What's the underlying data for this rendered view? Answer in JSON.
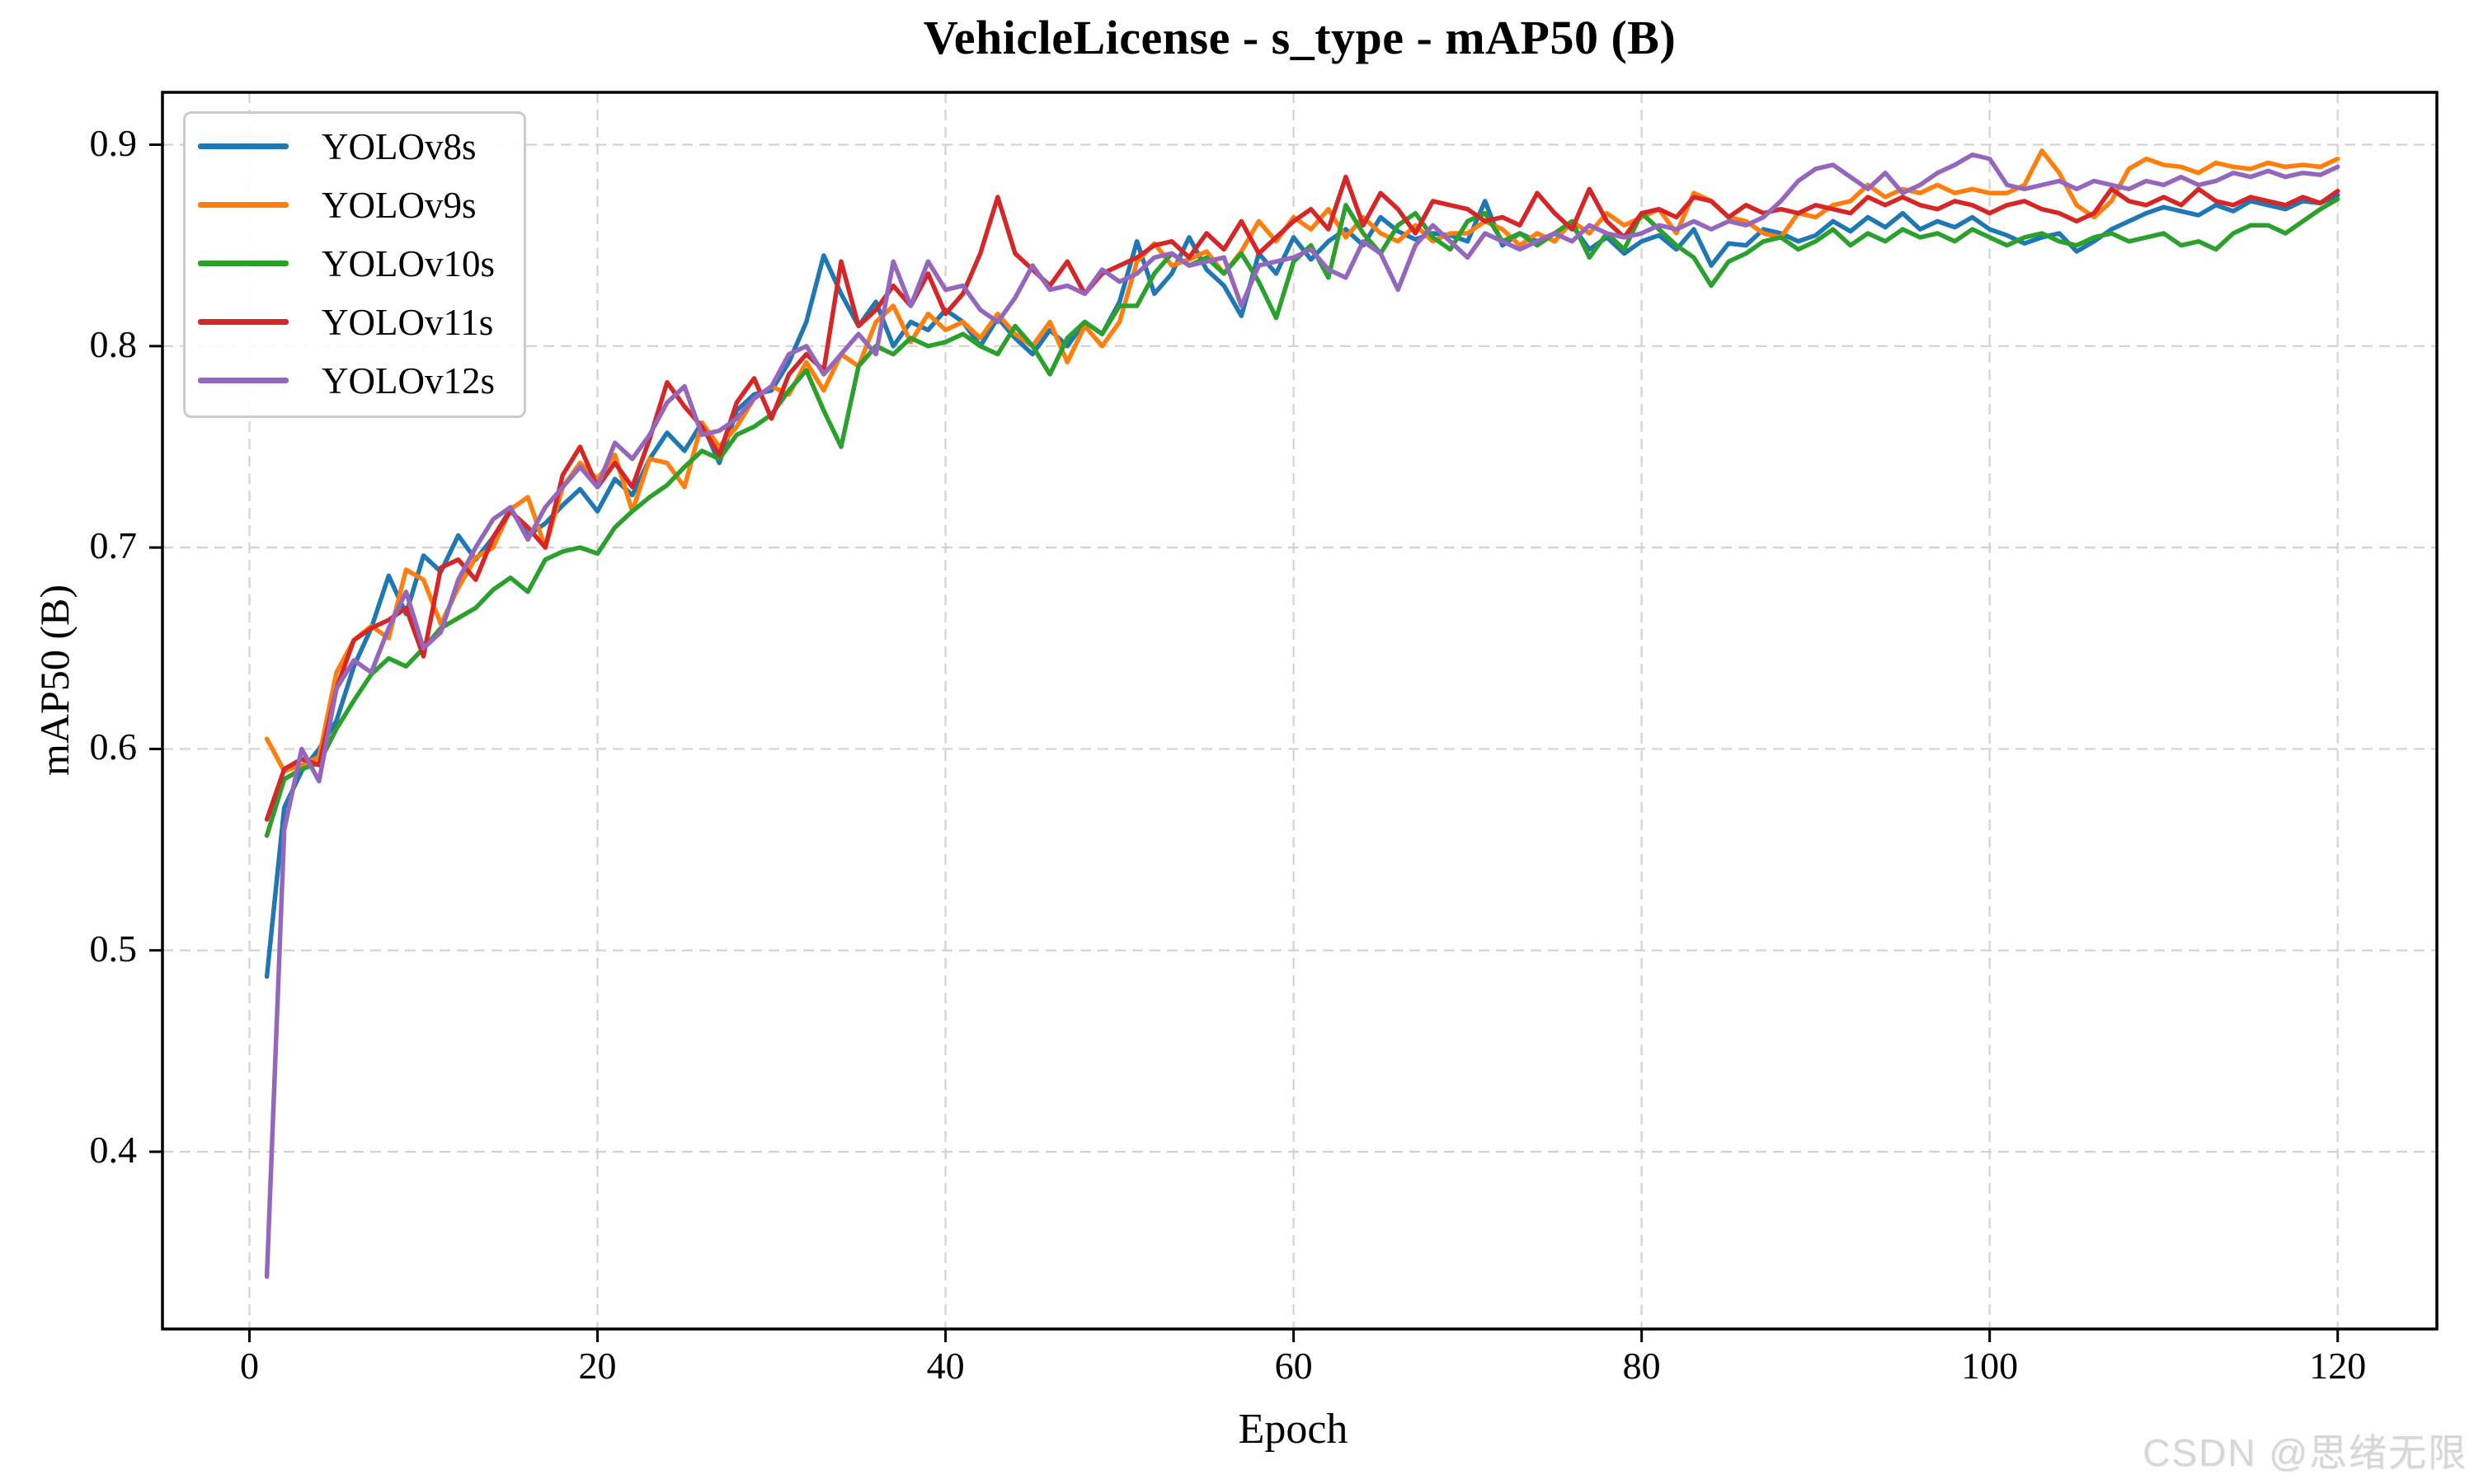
{
  "figure": {
    "watermark": "CSDN @思绪无限"
  },
  "chart_data": {
    "type": "line",
    "title": "VehicleLicense - s_type - mAP50 (B)",
    "xlabel": "Epoch",
    "ylabel": "mAP50 (B)",
    "xlim": [
      -5,
      125.7
    ],
    "ylim": [
      0.312,
      0.926
    ],
    "xticks": [
      0,
      20,
      40,
      60,
      80,
      100,
      120
    ],
    "yticks": [
      0.4,
      0.5,
      0.6,
      0.7,
      0.8,
      0.9
    ],
    "grid": true,
    "grid_style": "dashed",
    "grid_color": "#d2d2d2",
    "legend_position": "upper left",
    "x_start": 1,
    "series": [
      {
        "name": "YOLOv8s",
        "color": "#1f77b4",
        "values": [
          0.487,
          0.571,
          0.589,
          0.6,
          0.614,
          0.641,
          0.66,
          0.686,
          0.667,
          0.696,
          0.688,
          0.706,
          0.694,
          0.705,
          0.719,
          0.706,
          0.712,
          0.721,
          0.729,
          0.718,
          0.734,
          0.726,
          0.744,
          0.757,
          0.748,
          0.762,
          0.742,
          0.768,
          0.776,
          0.778,
          0.792,
          0.812,
          0.845,
          0.826,
          0.81,
          0.822,
          0.8,
          0.812,
          0.808,
          0.818,
          0.812,
          0.8,
          0.814,
          0.804,
          0.796,
          0.808,
          0.8,
          0.812,
          0.806,
          0.822,
          0.852,
          0.826,
          0.836,
          0.854,
          0.838,
          0.83,
          0.815,
          0.846,
          0.836,
          0.854,
          0.843,
          0.852,
          0.858,
          0.85,
          0.864,
          0.857,
          0.853,
          0.856,
          0.855,
          0.852,
          0.872,
          0.85,
          0.856,
          0.852,
          0.856,
          0.86,
          0.848,
          0.854,
          0.846,
          0.852,
          0.855,
          0.848,
          0.858,
          0.84,
          0.851,
          0.85,
          0.858,
          0.856,
          0.852,
          0.855,
          0.862,
          0.857,
          0.864,
          0.859,
          0.866,
          0.858,
          0.862,
          0.859,
          0.864,
          0.858,
          0.855,
          0.851,
          0.854,
          0.856,
          0.847,
          0.852,
          0.858,
          0.862,
          0.866,
          0.869,
          0.867,
          0.865,
          0.87,
          0.867,
          0.872,
          0.87,
          0.868,
          0.872,
          0.871,
          0.875
        ]
      },
      {
        "name": "YOLOv9s",
        "color": "#ff7f0e",
        "values": [
          0.605,
          0.589,
          0.592,
          0.596,
          0.638,
          0.654,
          0.661,
          0.655,
          0.689,
          0.684,
          0.662,
          0.68,
          0.695,
          0.7,
          0.719,
          0.725,
          0.7,
          0.73,
          0.742,
          0.734,
          0.746,
          0.718,
          0.744,
          0.742,
          0.73,
          0.762,
          0.75,
          0.76,
          0.774,
          0.78,
          0.776,
          0.792,
          0.778,
          0.796,
          0.79,
          0.812,
          0.82,
          0.802,
          0.816,
          0.808,
          0.812,
          0.804,
          0.816,
          0.806,
          0.8,
          0.812,
          0.792,
          0.81,
          0.8,
          0.812,
          0.842,
          0.851,
          0.84,
          0.843,
          0.847,
          0.836,
          0.847,
          0.862,
          0.852,
          0.864,
          0.858,
          0.868,
          0.854,
          0.864,
          0.856,
          0.852,
          0.86,
          0.852,
          0.856,
          0.856,
          0.862,
          0.858,
          0.85,
          0.856,
          0.852,
          0.862,
          0.856,
          0.866,
          0.86,
          0.864,
          0.868,
          0.856,
          0.876,
          0.872,
          0.864,
          0.862,
          0.856,
          0.854,
          0.866,
          0.864,
          0.87,
          0.872,
          0.88,
          0.874,
          0.878,
          0.876,
          0.88,
          0.876,
          0.878,
          0.876,
          0.876,
          0.88,
          0.897,
          0.886,
          0.87,
          0.864,
          0.872,
          0.888,
          0.893,
          0.89,
          0.889,
          0.886,
          0.891,
          0.889,
          0.888,
          0.891,
          0.889,
          0.89,
          0.889,
          0.893
        ]
      },
      {
        "name": "YOLOv10s",
        "color": "#2ca02c",
        "values": [
          0.557,
          0.585,
          0.59,
          0.593,
          0.61,
          0.624,
          0.637,
          0.645,
          0.641,
          0.65,
          0.66,
          0.665,
          0.67,
          0.679,
          0.685,
          0.678,
          0.694,
          0.698,
          0.7,
          0.697,
          0.71,
          0.718,
          0.725,
          0.731,
          0.74,
          0.748,
          0.744,
          0.756,
          0.76,
          0.766,
          0.778,
          0.788,
          0.768,
          0.75,
          0.79,
          0.8,
          0.796,
          0.804,
          0.8,
          0.802,
          0.806,
          0.8,
          0.796,
          0.81,
          0.8,
          0.786,
          0.804,
          0.812,
          0.806,
          0.82,
          0.82,
          0.836,
          0.846,
          0.84,
          0.844,
          0.836,
          0.846,
          0.832,
          0.814,
          0.842,
          0.85,
          0.834,
          0.87,
          0.856,
          0.846,
          0.86,
          0.866,
          0.854,
          0.848,
          0.862,
          0.866,
          0.852,
          0.856,
          0.85,
          0.856,
          0.862,
          0.844,
          0.856,
          0.848,
          0.866,
          0.858,
          0.85,
          0.844,
          0.83,
          0.842,
          0.846,
          0.852,
          0.854,
          0.848,
          0.852,
          0.858,
          0.85,
          0.856,
          0.852,
          0.858,
          0.854,
          0.856,
          0.852,
          0.858,
          0.854,
          0.85,
          0.854,
          0.856,
          0.852,
          0.85,
          0.854,
          0.856,
          0.852,
          0.854,
          0.856,
          0.85,
          0.852,
          0.848,
          0.856,
          0.86,
          0.86,
          0.856,
          0.862,
          0.868,
          0.873
        ]
      },
      {
        "name": "YOLOv11s",
        "color": "#d62728",
        "values": [
          0.565,
          0.59,
          0.595,
          0.592,
          0.63,
          0.654,
          0.66,
          0.664,
          0.67,
          0.646,
          0.69,
          0.694,
          0.684,
          0.705,
          0.718,
          0.71,
          0.7,
          0.736,
          0.75,
          0.73,
          0.742,
          0.73,
          0.754,
          0.782,
          0.77,
          0.76,
          0.746,
          0.772,
          0.784,
          0.764,
          0.786,
          0.796,
          0.788,
          0.842,
          0.81,
          0.818,
          0.83,
          0.82,
          0.836,
          0.816,
          0.826,
          0.846,
          0.874,
          0.846,
          0.838,
          0.83,
          0.842,
          0.826,
          0.836,
          0.84,
          0.844,
          0.85,
          0.852,
          0.844,
          0.856,
          0.848,
          0.862,
          0.846,
          0.854,
          0.862,
          0.868,
          0.858,
          0.884,
          0.86,
          0.876,
          0.868,
          0.856,
          0.872,
          0.87,
          0.868,
          0.862,
          0.864,
          0.86,
          0.876,
          0.866,
          0.858,
          0.878,
          0.862,
          0.854,
          0.866,
          0.868,
          0.864,
          0.874,
          0.872,
          0.864,
          0.87,
          0.866,
          0.868,
          0.866,
          0.87,
          0.868,
          0.866,
          0.874,
          0.87,
          0.874,
          0.87,
          0.868,
          0.872,
          0.87,
          0.866,
          0.87,
          0.872,
          0.868,
          0.866,
          0.862,
          0.866,
          0.878,
          0.872,
          0.87,
          0.874,
          0.87,
          0.878,
          0.872,
          0.87,
          0.874,
          0.872,
          0.87,
          0.874,
          0.871,
          0.877
        ]
      },
      {
        "name": "YOLOv12s",
        "color": "#9467bd",
        "values": [
          0.338,
          0.56,
          0.6,
          0.584,
          0.63,
          0.644,
          0.638,
          0.66,
          0.678,
          0.65,
          0.658,
          0.684,
          0.7,
          0.714,
          0.72,
          0.704,
          0.72,
          0.73,
          0.74,
          0.73,
          0.752,
          0.744,
          0.756,
          0.772,
          0.78,
          0.756,
          0.758,
          0.764,
          0.774,
          0.78,
          0.796,
          0.8,
          0.786,
          0.796,
          0.806,
          0.796,
          0.842,
          0.82,
          0.842,
          0.828,
          0.83,
          0.818,
          0.812,
          0.824,
          0.84,
          0.828,
          0.83,
          0.826,
          0.838,
          0.832,
          0.836,
          0.844,
          0.846,
          0.84,
          0.842,
          0.844,
          0.82,
          0.84,
          0.842,
          0.844,
          0.848,
          0.838,
          0.834,
          0.852,
          0.846,
          0.828,
          0.85,
          0.86,
          0.852,
          0.844,
          0.856,
          0.852,
          0.848,
          0.852,
          0.856,
          0.852,
          0.86,
          0.856,
          0.854,
          0.856,
          0.86,
          0.858,
          0.862,
          0.858,
          0.862,
          0.86,
          0.864,
          0.872,
          0.882,
          0.888,
          0.89,
          0.884,
          0.878,
          0.886,
          0.876,
          0.88,
          0.886,
          0.89,
          0.895,
          0.893,
          0.88,
          0.878,
          0.88,
          0.882,
          0.878,
          0.882,
          0.88,
          0.878,
          0.882,
          0.88,
          0.884,
          0.88,
          0.882,
          0.886,
          0.884,
          0.887,
          0.884,
          0.886,
          0.885,
          0.889
        ]
      }
    ]
  }
}
